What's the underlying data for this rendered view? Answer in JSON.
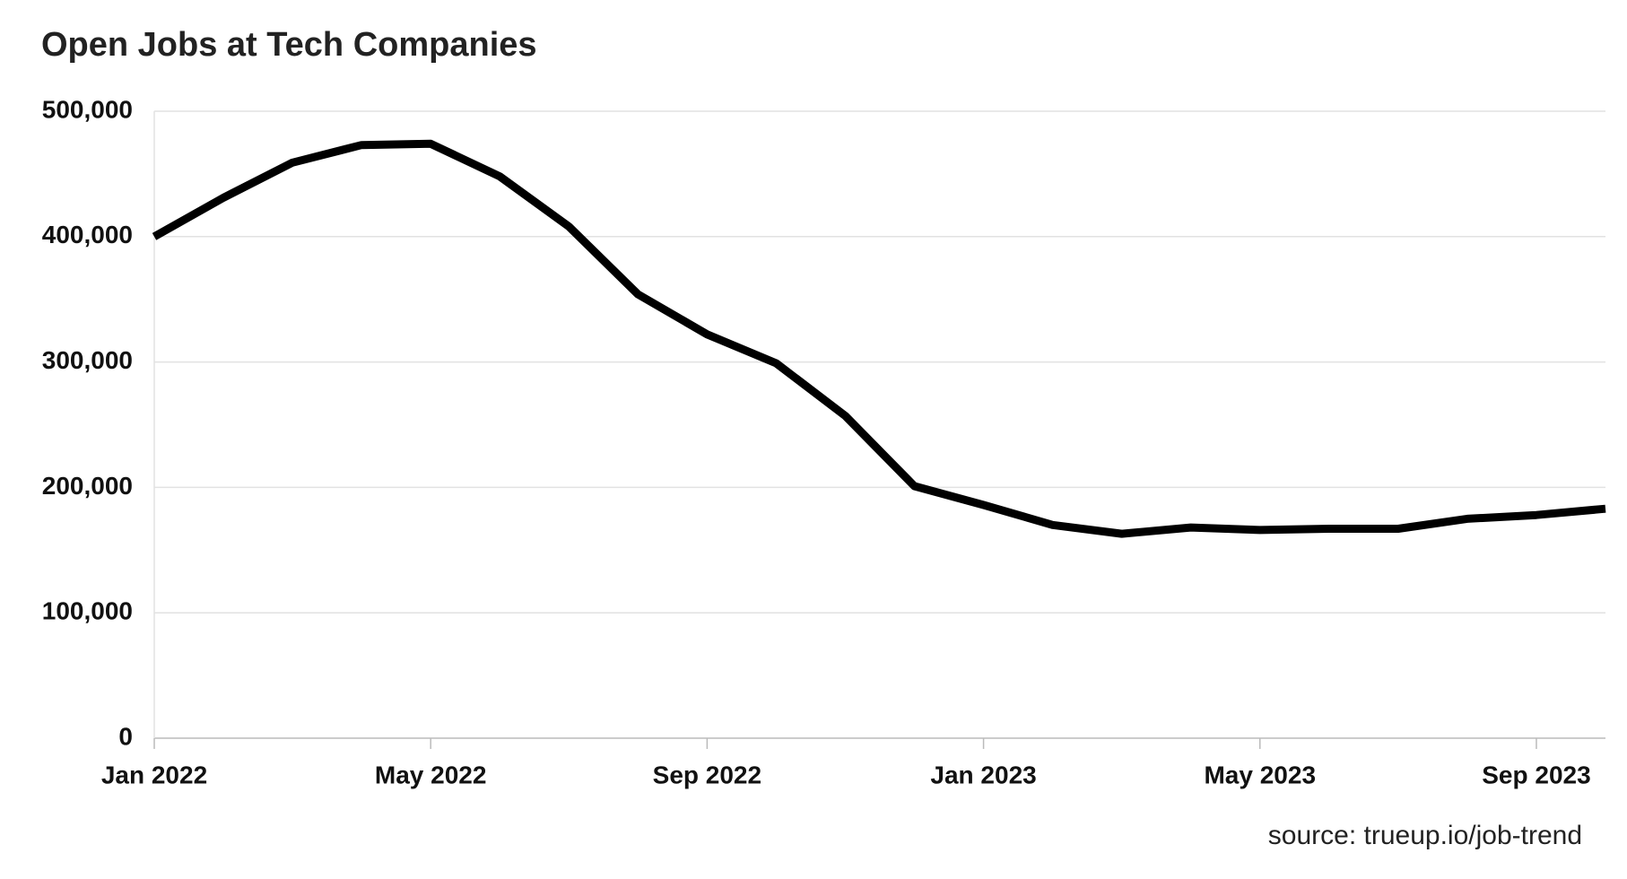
{
  "chart_data": {
    "type": "line",
    "title": "Open Jobs at Tech Companies",
    "source": "source: trueup.io/job-trend",
    "x": [
      "2022-01",
      "2022-02",
      "2022-03",
      "2022-04",
      "2022-05",
      "2022-06",
      "2022-07",
      "2022-08",
      "2022-09",
      "2022-10",
      "2022-11",
      "2022-12",
      "2023-01",
      "2023-02",
      "2023-03",
      "2023-04",
      "2023-05",
      "2023-06",
      "2023-07",
      "2023-08",
      "2023-09",
      "2023-10"
    ],
    "series": [
      {
        "name": "Open jobs",
        "color": "#000000",
        "values": [
          400000,
          431000,
          459000,
          473000,
          474000,
          448000,
          408000,
          354000,
          322000,
          299000,
          257000,
          201000,
          186000,
          170000,
          163000,
          168000,
          166000,
          167000,
          167000,
          175000,
          178000,
          183000
        ]
      }
    ],
    "xlim": [
      "2022-01",
      "2023-10"
    ],
    "xticks": [
      {
        "value": "2022-01",
        "label": "Jan 2022"
      },
      {
        "value": "2022-05",
        "label": "May 2022"
      },
      {
        "value": "2022-09",
        "label": "Sep 2022"
      },
      {
        "value": "2023-01",
        "label": "Jan 2023"
      },
      {
        "value": "2023-05",
        "label": "May 2023"
      },
      {
        "value": "2023-09",
        "label": "Sep 2023"
      }
    ],
    "ylim": [
      0,
      500000
    ],
    "yticks": [
      0,
      {
        "value": 100000,
        "label": "100,000"
      },
      {
        "value": 200000,
        "label": "200,000"
      },
      {
        "value": 300000,
        "label": "300,000"
      },
      {
        "value": 400000,
        "label": "400,000"
      },
      {
        "value": 500000,
        "label": "500,000"
      }
    ],
    "grid": true
  }
}
